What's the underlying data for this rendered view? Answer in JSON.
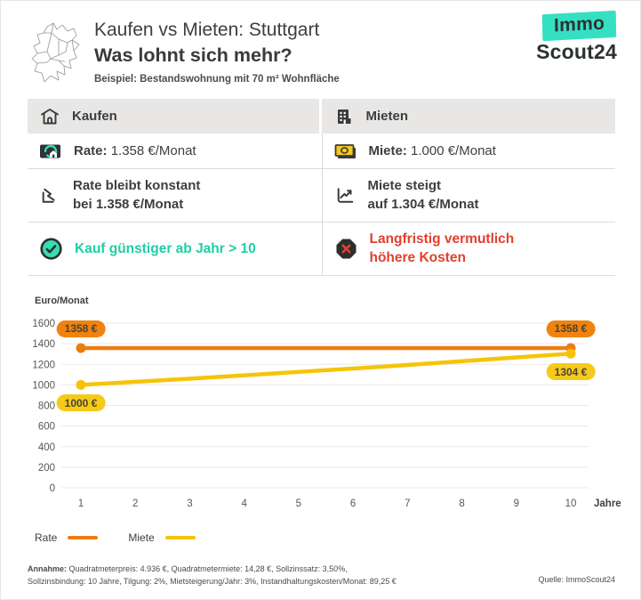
{
  "header": {
    "title_line1": "Kaufen vs Mieten: Stuttgart",
    "title_line2": "Was lohnt sich mehr?",
    "subtitle": "Beispiel: Bestandswohnung mit 70 m² Wohnfläche",
    "logo": {
      "top": "Immo",
      "bottom": "Scout24"
    }
  },
  "icons": {
    "header_left": "map-sketch-icon",
    "buy_header": "house-icon",
    "rent_header": "building-icon",
    "buy_rate": "mortgage-card-icon",
    "rent_rate": "banknote-icon",
    "buy_trend": "chart-declining-icon",
    "rent_trend": "chart-rising-icon",
    "buy_verdict": "check-circle-icon",
    "rent_verdict": "x-octagon-icon"
  },
  "comparison_table": {
    "buy": {
      "header": "Kaufen",
      "rate_label": "Rate:",
      "rate_value": "1.358 €/Monat",
      "trend_line1": "Rate bleibt konstant",
      "trend_line2": "bei 1.358 €/Monat",
      "verdict": "Kauf günstiger ab Jahr > 10"
    },
    "rent": {
      "header": "Mieten",
      "rate_label": "Miete:",
      "rate_value": "1.000 €/Monat",
      "trend_line1": "Miete steigt",
      "trend_line2": "auf 1.304 €/Monat",
      "verdict_line1": "Langfristig vermutlich",
      "verdict_line2": "höhere Kosten"
    }
  },
  "chart_data": {
    "type": "line",
    "ylabel": "Euro/Monat",
    "xlabel": "Jahre",
    "x": [
      1,
      2,
      3,
      4,
      5,
      6,
      7,
      8,
      9,
      10
    ],
    "series": [
      {
        "name": "Rate",
        "color": "#ed7d11",
        "values": [
          1358,
          1358,
          1358,
          1358,
          1358,
          1358,
          1358,
          1358,
          1358,
          1358
        ]
      },
      {
        "name": "Miete",
        "color": "#f5c40a",
        "values": [
          1000,
          1030,
          1061,
          1093,
          1126,
          1159,
          1194,
          1230,
          1267,
          1304
        ]
      }
    ],
    "ylim": [
      0,
      1600
    ],
    "ytick_step": 200,
    "grid": true,
    "legend_position": "bottom-left",
    "badges": [
      {
        "text": "1358 €",
        "series": 0,
        "point": 0,
        "placement": "above",
        "bg": "#f0830f"
      },
      {
        "text": "1358 €",
        "series": 0,
        "point": 9,
        "placement": "above",
        "bg": "#f0830f"
      },
      {
        "text": "1000 €",
        "series": 1,
        "point": 0,
        "placement": "below",
        "bg": "#f6ca1a"
      },
      {
        "text": "1304 €",
        "series": 1,
        "point": 9,
        "placement": "below",
        "bg": "#f6ca1a"
      }
    ]
  },
  "legend": [
    {
      "label": "Rate",
      "color": "#ed7d11"
    },
    {
      "label": "Miete",
      "color": "#f5c40a"
    }
  ],
  "footer": {
    "assumptions_label": "Annahme:",
    "assumptions_line1": "Quadratmeterpreis: 4.936 €, Quadratmetermiete: 14,28 €,  Sollzinssatz: 3,50%,",
    "assumptions_line2": "Sollzinsbindung: 10 Jahre, Tilgung: 2%, Mietsteigerung/Jahr: 3%, Instandhaltungskosten/Monat: 89,25 €",
    "source": "Quelle: ImmoScout24"
  },
  "colors": {
    "brand_teal": "#35e0c2",
    "positive_text": "#1fcfa5",
    "negative_text": "#e2402f",
    "rate_line": "#ed7d11",
    "rate_badge": "#f0830f",
    "miete_line": "#f5c40a",
    "miete_badge": "#f6ca1a",
    "grid": "#e9e9e9",
    "text_dark": "#3e3e3e"
  }
}
